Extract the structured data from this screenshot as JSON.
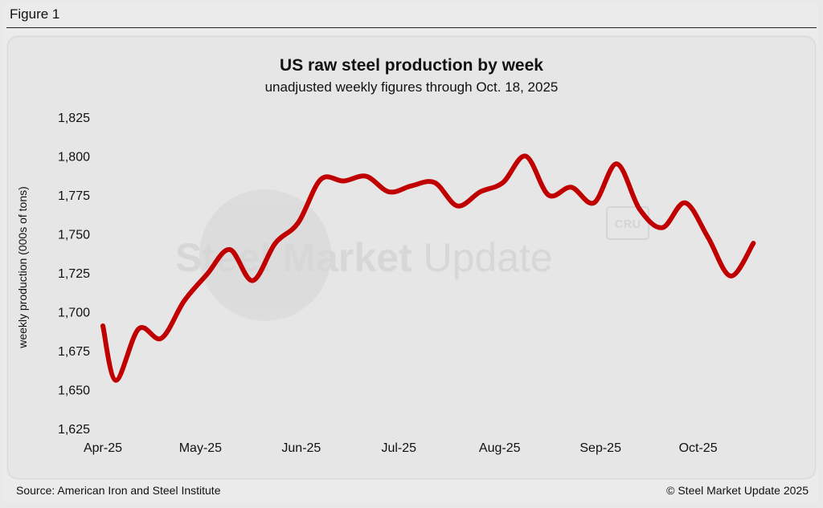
{
  "figure_label": "Figure 1",
  "footer": {
    "source": "Source: American Iron and Steel Institute",
    "copyright": "© Steel Market Update 2025"
  },
  "watermark": {
    "brand_bold": "Steel Market",
    "brand_light": " Update",
    "badge": "CRU"
  },
  "colors": {
    "line": "#c00000",
    "background": "#e6e6e6",
    "text": "#111111"
  },
  "chart_data": {
    "type": "line",
    "title": "US raw steel production by week",
    "subtitle": "unadjusted weekly figures through Oct. 18, 2025",
    "ylabel": "weekly production (000s of tons)",
    "xlabel": "",
    "ylim": [
      1625,
      1825
    ],
    "yticks": [
      1625,
      1650,
      1675,
      1700,
      1725,
      1750,
      1775,
      1800,
      1825
    ],
    "ytick_labels": [
      "1,625",
      "1,650",
      "1,675",
      "1,700",
      "1,725",
      "1,750",
      "1,775",
      "1,800",
      "1,825"
    ],
    "xlim": [
      "2025-04-01",
      "2025-10-31"
    ],
    "xticks": [
      "2025-04-01",
      "2025-05-01",
      "2025-06-01",
      "2025-07-01",
      "2025-08-01",
      "2025-09-01",
      "2025-10-01"
    ],
    "xtick_labels": [
      "Apr-25",
      "May-25",
      "Jun-25",
      "Jul-25",
      "Aug-25",
      "Sep-25",
      "Oct-25"
    ],
    "grid": false,
    "legend": "none",
    "series": [
      {
        "x": [
          "2025-04-01",
          "2025-04-05",
          "2025-04-12",
          "2025-04-19",
          "2025-04-26",
          "2025-05-03",
          "2025-05-10",
          "2025-05-17",
          "2025-05-24",
          "2025-05-31",
          "2025-06-07",
          "2025-06-14",
          "2025-06-21",
          "2025-06-28",
          "2025-07-05",
          "2025-07-12",
          "2025-07-19",
          "2025-07-26",
          "2025-08-02",
          "2025-08-09",
          "2025-08-16",
          "2025-08-23",
          "2025-08-30",
          "2025-09-06",
          "2025-09-13",
          "2025-09-20",
          "2025-09-27",
          "2025-10-04",
          "2025-10-11",
          "2025-10-18"
        ],
        "values": [
          1691,
          1656,
          1689,
          1683,
          1707,
          1724,
          1740,
          1720,
          1744,
          1757,
          1785,
          1784,
          1787,
          1777,
          1781,
          1783,
          1768,
          1777,
          1783,
          1800,
          1775,
          1780,
          1770,
          1795,
          1766,
          1754,
          1770,
          1748,
          1723,
          1744
        ]
      }
    ]
  }
}
